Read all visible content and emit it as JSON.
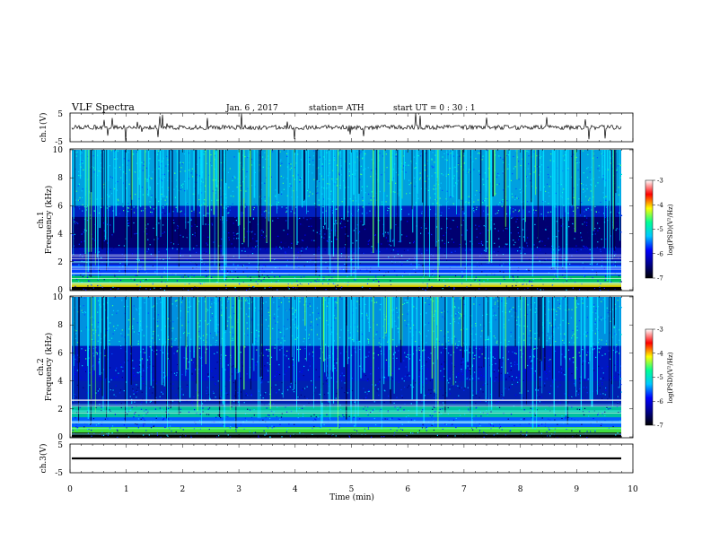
{
  "header": {
    "title": "VLF  Spectra",
    "date": "Jan. 6  , 2017",
    "station": "station= ATH",
    "start": "start  UT  =    0  : 30 : 1"
  },
  "chart_data": [
    {
      "type": "line",
      "panel": "ch1-waveform",
      "ylabel": "ch.1(V)",
      "ylim": [
        -5,
        5
      ],
      "yticks": [
        "5",
        "-5"
      ],
      "xlim": [
        0,
        10
      ],
      "series_color": "#000000"
    },
    {
      "type": "heatmap",
      "panel": "ch1-spectrogram",
      "ylabel": "ch.1\nFrequency  (kHz)",
      "ylabel_lines": [
        "ch.1",
        "Frequency  (kHz)"
      ],
      "ylim": [
        0,
        10
      ],
      "yticks": [
        "0",
        "2",
        "4",
        "6",
        "8",
        "10"
      ],
      "xlim": [
        0,
        10
      ],
      "colorbar": {
        "label": "log(PSD)(V²/Hz)",
        "range": [
          -7,
          -3
        ],
        "ticks": [
          "-3",
          "-4",
          "-5",
          "-6",
          "-7"
        ],
        "colors": [
          "#000000",
          "#00008b",
          "#0000ff",
          "#00c8ff",
          "#00ff96",
          "#ffff00",
          "#ff0000",
          "#ffffff"
        ]
      }
    },
    {
      "type": "heatmap",
      "panel": "ch2-spectrogram",
      "ylabel": "ch.2\nFrequency  (kHz)",
      "ylabel_lines": [
        "ch.2",
        "Frequency  (kHz)"
      ],
      "ylim": [
        0,
        10
      ],
      "yticks": [
        "0",
        "2",
        "4",
        "6",
        "8",
        "10"
      ],
      "xlim": [
        0,
        10
      ],
      "colorbar": {
        "label": "log(PSD)(V²/Hz)",
        "range": [
          -7,
          -3
        ],
        "ticks": [
          "-3",
          "-4",
          "-5",
          "-6",
          "-7"
        ]
      }
    },
    {
      "type": "line",
      "panel": "ch3-waveform",
      "ylabel": "ch.3(V)",
      "ylim": [
        -5,
        5
      ],
      "yticks": [
        "5",
        "-5"
      ],
      "xlabel": "Time  (min)",
      "xlim": [
        0,
        10
      ],
      "xticks": [
        "0",
        "1",
        "2",
        "3",
        "4",
        "5",
        "6",
        "7",
        "8",
        "9",
        "10"
      ]
    }
  ]
}
